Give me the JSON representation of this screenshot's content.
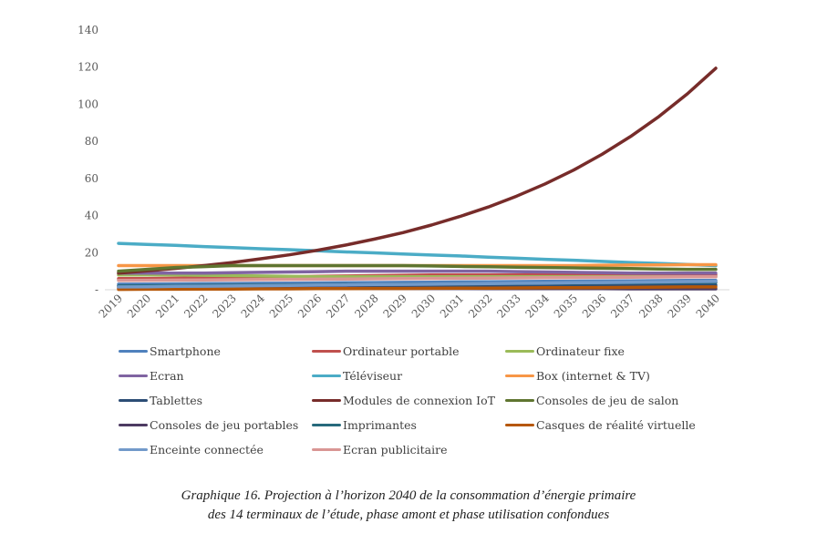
{
  "chart_data": {
    "type": "line",
    "title": "",
    "xlabel": "",
    "ylabel": "",
    "ylim": [
      0,
      140
    ],
    "yticks": [
      0,
      20,
      40,
      60,
      80,
      100,
      120,
      140
    ],
    "ytick_labels": [
      "-",
      "20",
      "40",
      "60",
      "80",
      "100",
      "120",
      "140"
    ],
    "grid": false,
    "legend_position": "bottom",
    "x": [
      "2019",
      "2020",
      "2021",
      "2022",
      "2023",
      "2024",
      "2025",
      "2026",
      "2027",
      "2028",
      "2029",
      "2030",
      "2031",
      "2032",
      "2033",
      "2034",
      "2035",
      "2036",
      "2037",
      "2038",
      "2039",
      "2040"
    ],
    "series": [
      {
        "name": "Smartphone",
        "color": "#4f81bd",
        "values": [
          3,
          3.1,
          3.2,
          3.3,
          3.4,
          3.5,
          3.6,
          3.7,
          3.8,
          3.9,
          4,
          4.1,
          4.2,
          4.3,
          4.4,
          4.5,
          4.6,
          4.7,
          4.8,
          4.9,
          5,
          5
        ]
      },
      {
        "name": "Ordinateur portable",
        "color": "#c0504d",
        "values": [
          6,
          6,
          6.2,
          6.4,
          6.6,
          6.8,
          7,
          7.2,
          7.4,
          7.6,
          7.8,
          8,
          8,
          8,
          8,
          8,
          8,
          8,
          8,
          8,
          8,
          8
        ]
      },
      {
        "name": "Ordinateur fixe",
        "color": "#9bbb59",
        "values": [
          8,
          8,
          8,
          7.8,
          7.6,
          7.4,
          7.2,
          7,
          7,
          7,
          7,
          7,
          7,
          7,
          7,
          7,
          7,
          7,
          7,
          7,
          7,
          7
        ]
      },
      {
        "name": "Ecran",
        "color": "#8064a2",
        "values": [
          9,
          9,
          9,
          9,
          9.2,
          9.4,
          9.6,
          9.8,
          10,
          10,
          10,
          10,
          10,
          10,
          9.8,
          9.6,
          9.4,
          9.2,
          9,
          9,
          9,
          9
        ]
      },
      {
        "name": "Téléviseur",
        "color": "#4bacc6",
        "values": [
          25,
          24.4,
          23.9,
          23.3,
          22.7,
          22.1,
          21.6,
          21,
          20.4,
          19.9,
          19.3,
          18.7,
          18.2,
          17.6,
          17,
          16.4,
          15.9,
          15.3,
          14.7,
          14.2,
          13.6,
          13
        ]
      },
      {
        "name": "Box (internet & TV)",
        "color": "#f79646",
        "values": [
          13,
          13,
          13,
          13,
          13,
          13,
          13,
          13,
          13,
          13,
          13,
          13,
          13,
          13,
          13,
          13,
          13,
          13.2,
          13.3,
          13.4,
          13.5,
          13.5
        ]
      },
      {
        "name": "Tablettes",
        "color": "#2c4d75",
        "values": [
          2,
          2,
          2,
          2,
          2.1,
          2.1,
          2.1,
          2.2,
          2.2,
          2.2,
          2.3,
          2.3,
          2.3,
          2.3,
          2.4,
          2.4,
          2.4,
          2.4,
          2.5,
          2.5,
          2.5,
          2.5
        ]
      },
      {
        "name": "Modules de connexion IoT",
        "color": "#772c2a",
        "values": [
          9,
          10.2,
          11.5,
          13,
          14.7,
          16.7,
          18.8,
          21.3,
          24.1,
          27.3,
          30.8,
          34.9,
          39.5,
          44.6,
          50.5,
          57.1,
          64.5,
          73,
          82.6,
          93.4,
          105.6,
          119.4
        ]
      },
      {
        "name": "Consoles de jeu de salon",
        "color": "#5f7530",
        "values": [
          10,
          11,
          12,
          12.5,
          13,
          13,
          13,
          13,
          13,
          13,
          13,
          12.8,
          12.6,
          12.4,
          12.2,
          12,
          11.8,
          11.6,
          11.4,
          11.2,
          11,
          11
        ]
      },
      {
        "name": "Consoles de jeu portables",
        "color": "#4d3b62",
        "values": [
          1,
          1,
          1,
          0.9,
          0.9,
          0.9,
          0.8,
          0.8,
          0.8,
          0.7,
          0.7,
          0.7,
          0.7,
          0.6,
          0.6,
          0.6,
          0.6,
          0.6,
          0.5,
          0.5,
          0.5,
          0.5
        ]
      },
      {
        "name": "Imprimantes",
        "color": "#276a7c",
        "values": [
          2,
          2.1,
          2.2,
          2.3,
          2.4,
          2.5,
          2.6,
          2.7,
          2.8,
          2.9,
          3,
          3.1,
          3.2,
          3.3,
          3.4,
          3.5,
          3.6,
          3.7,
          3.8,
          3.9,
          4,
          4
        ]
      },
      {
        "name": "Casques de réalité virtuelle",
        "color": "#b65708",
        "values": [
          0.2,
          0.3,
          0.3,
          0.4,
          0.4,
          0.5,
          0.5,
          0.6,
          0.6,
          0.7,
          0.7,
          0.8,
          0.9,
          0.9,
          1,
          1.1,
          1.1,
          1.2,
          1.3,
          1.4,
          1.5,
          1.5
        ]
      },
      {
        "name": "Enceinte connectée",
        "color": "#729aca",
        "values": [
          1.5,
          1.6,
          1.8,
          1.9,
          2,
          2.2,
          2.3,
          2.5,
          2.6,
          2.8,
          2.9,
          3,
          3.2,
          3.3,
          3.5,
          3.6,
          3.8,
          3.9,
          4.1,
          4.2,
          4.4,
          4.5
        ]
      },
      {
        "name": "Ecran publicitaire",
        "color": "#d99694",
        "values": [
          5,
          5.1,
          5.2,
          5.3,
          5.4,
          5.5,
          5.6,
          5.7,
          5.8,
          5.9,
          6,
          6.1,
          6.2,
          6.3,
          6.4,
          6.5,
          6.6,
          6.7,
          6.8,
          6.9,
          7,
          7
        ]
      }
    ]
  },
  "caption": {
    "line1": "Graphique 16. Projection à l’horizon 2040 de la consommation d’énergie primaire",
    "line2": "des 14 terminaux de l’étude, phase amont et phase utilisation confondues"
  }
}
